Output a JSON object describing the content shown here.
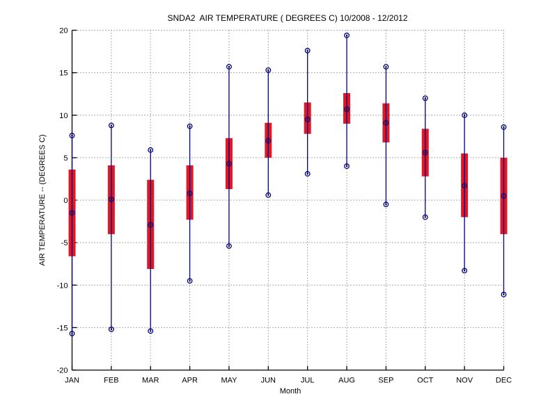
{
  "window": {
    "background": "#ffffff"
  },
  "chart_data": {
    "type": "box",
    "title": "SNDA2  AIR TEMPERATURE ( DEGREES C) 10/2008 - 12/2012",
    "xlabel": "Month",
    "ylabel": "AIR TEMPERATURE -- (DEGREES C)",
    "ylim": [
      -20,
      20
    ],
    "yticks": [
      20,
      15,
      10,
      5,
      0,
      -5,
      -10,
      -15,
      -20
    ],
    "grid": true,
    "grid_style": "dotted",
    "legend": "none",
    "categories": [
      "JAN",
      "FEB",
      "MAR",
      "APR",
      "MAY",
      "JUN",
      "JUL",
      "AUG",
      "SEP",
      "OCT",
      "NOV",
      "DEC"
    ],
    "boxes": [
      {
        "month": "JAN",
        "min": -15.7,
        "q1": -6.6,
        "mean": -1.5,
        "q3": 3.6,
        "max": 7.6
      },
      {
        "month": "FEB",
        "min": -15.2,
        "q1": -4.0,
        "mean": 0.1,
        "q3": 4.1,
        "max": 8.8
      },
      {
        "month": "MAR",
        "min": -15.4,
        "q1": -8.1,
        "mean": -2.9,
        "q3": 2.4,
        "max": 5.9
      },
      {
        "month": "APR",
        "min": -9.5,
        "q1": -2.3,
        "mean": 0.8,
        "q3": 4.1,
        "max": 8.7
      },
      {
        "month": "MAY",
        "min": -5.4,
        "q1": 1.3,
        "mean": 4.3,
        "q3": 7.3,
        "max": 15.7
      },
      {
        "month": "JUN",
        "min": 0.6,
        "q1": 5.0,
        "mean": 7.0,
        "q3": 9.1,
        "max": 15.3
      },
      {
        "month": "JUL",
        "min": 3.1,
        "q1": 7.8,
        "mean": 9.5,
        "q3": 11.5,
        "max": 17.6
      },
      {
        "month": "AUG",
        "min": 4.0,
        "q1": 9.0,
        "mean": 10.7,
        "q3": 12.6,
        "max": 19.4
      },
      {
        "month": "SEP",
        "min": -0.5,
        "q1": 6.8,
        "mean": 9.1,
        "q3": 11.4,
        "max": 15.7
      },
      {
        "month": "OCT",
        "min": -2.0,
        "q1": 2.8,
        "mean": 5.6,
        "q3": 8.4,
        "max": 12.0
      },
      {
        "month": "NOV",
        "min": -8.3,
        "q1": -2.0,
        "mean": 1.7,
        "q3": 5.5,
        "max": 10.0
      },
      {
        "month": "DEC",
        "min": -11.1,
        "q1": -4.0,
        "mean": 0.5,
        "q3": 5.0,
        "max": 8.6
      }
    ],
    "colors": {
      "whisker": "#00008B",
      "box_fill": "#E01825",
      "marker_ring": "#00008B",
      "marker_dot": "#000000",
      "axis": "#000000",
      "grid": "#555555",
      "text": "#000000"
    }
  }
}
